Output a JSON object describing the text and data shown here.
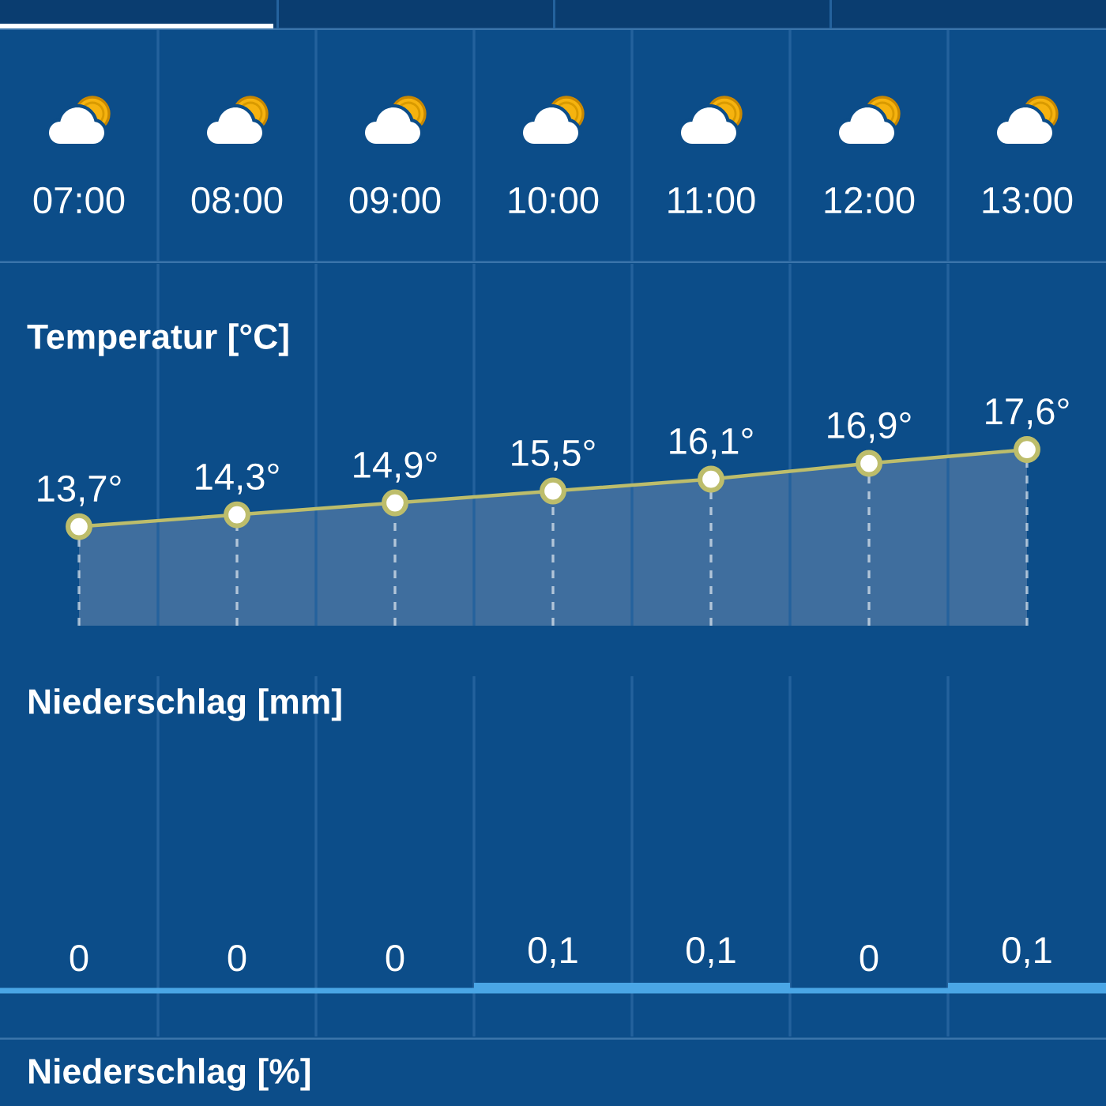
{
  "chart_data": [
    {
      "type": "area",
      "title": "Temperatur [°C]",
      "categories": [
        "07:00",
        "08:00",
        "09:00",
        "10:00",
        "11:00",
        "12:00",
        "13:00"
      ],
      "series": [
        {
          "type": "area",
          "color": "#3f6e9e",
          "values": [
            13.7,
            14.3,
            14.9,
            15.5,
            16.1,
            16.9,
            17.6
          ]
        },
        {
          "type": "line",
          "color": "#bdbd6b",
          "marker": "circle",
          "values": [
            13.7,
            14.3,
            14.9,
            15.5,
            16.1,
            16.9,
            17.6
          ],
          "value_labels": [
            "13,7°",
            "14,3°",
            "14,9°",
            "15,5°",
            "16,1°",
            "16,9°",
            "17,6°"
          ]
        }
      ],
      "grid": "x"
    },
    {
      "type": "bar",
      "title": "Niederschlag [mm]",
      "categories": [
        null,
        null,
        null,
        null,
        null,
        null,
        null
      ],
      "values": [
        0,
        0,
        0,
        0.1,
        0.1,
        0,
        0.1
      ],
      "value_labels": [
        "0",
        "0",
        "0",
        "0,1",
        "0,1",
        "0",
        "0,1"
      ],
      "color": "#4aa6e6",
      "grid": "x"
    },
    {
      "type": "other",
      "title": "Niederschlag [%]"
    }
  ]
}
